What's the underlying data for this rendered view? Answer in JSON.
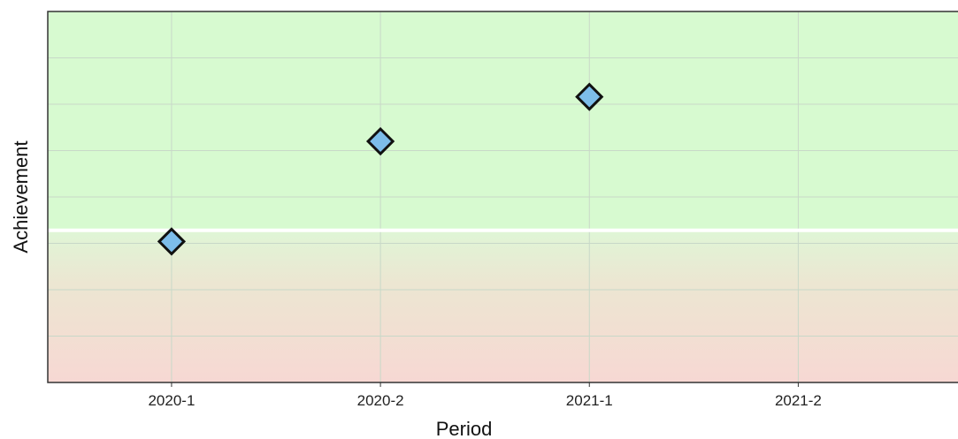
{
  "chart_data": {
    "type": "scatter",
    "title": "",
    "xlabel": "Period",
    "ylabel": "Achievement",
    "categories": [
      "2020-1",
      "2020-2",
      "2021-1",
      "2021-2"
    ],
    "series": [
      {
        "values": [
          38,
          65,
          77,
          null
        ]
      }
    ],
    "ylim": [
      0,
      100
    ],
    "threshold": 41,
    "grid": true,
    "legend": "none",
    "marker": "diamond",
    "colors": {
      "marker_fill": "#7dbdea",
      "marker_stroke": "#111111",
      "above_threshold": "#d7fad0",
      "below_threshold": "#f7d8d3",
      "threshold_line": "#ffffff",
      "grid": "#c8d8c8",
      "frame": "#333333"
    }
  }
}
